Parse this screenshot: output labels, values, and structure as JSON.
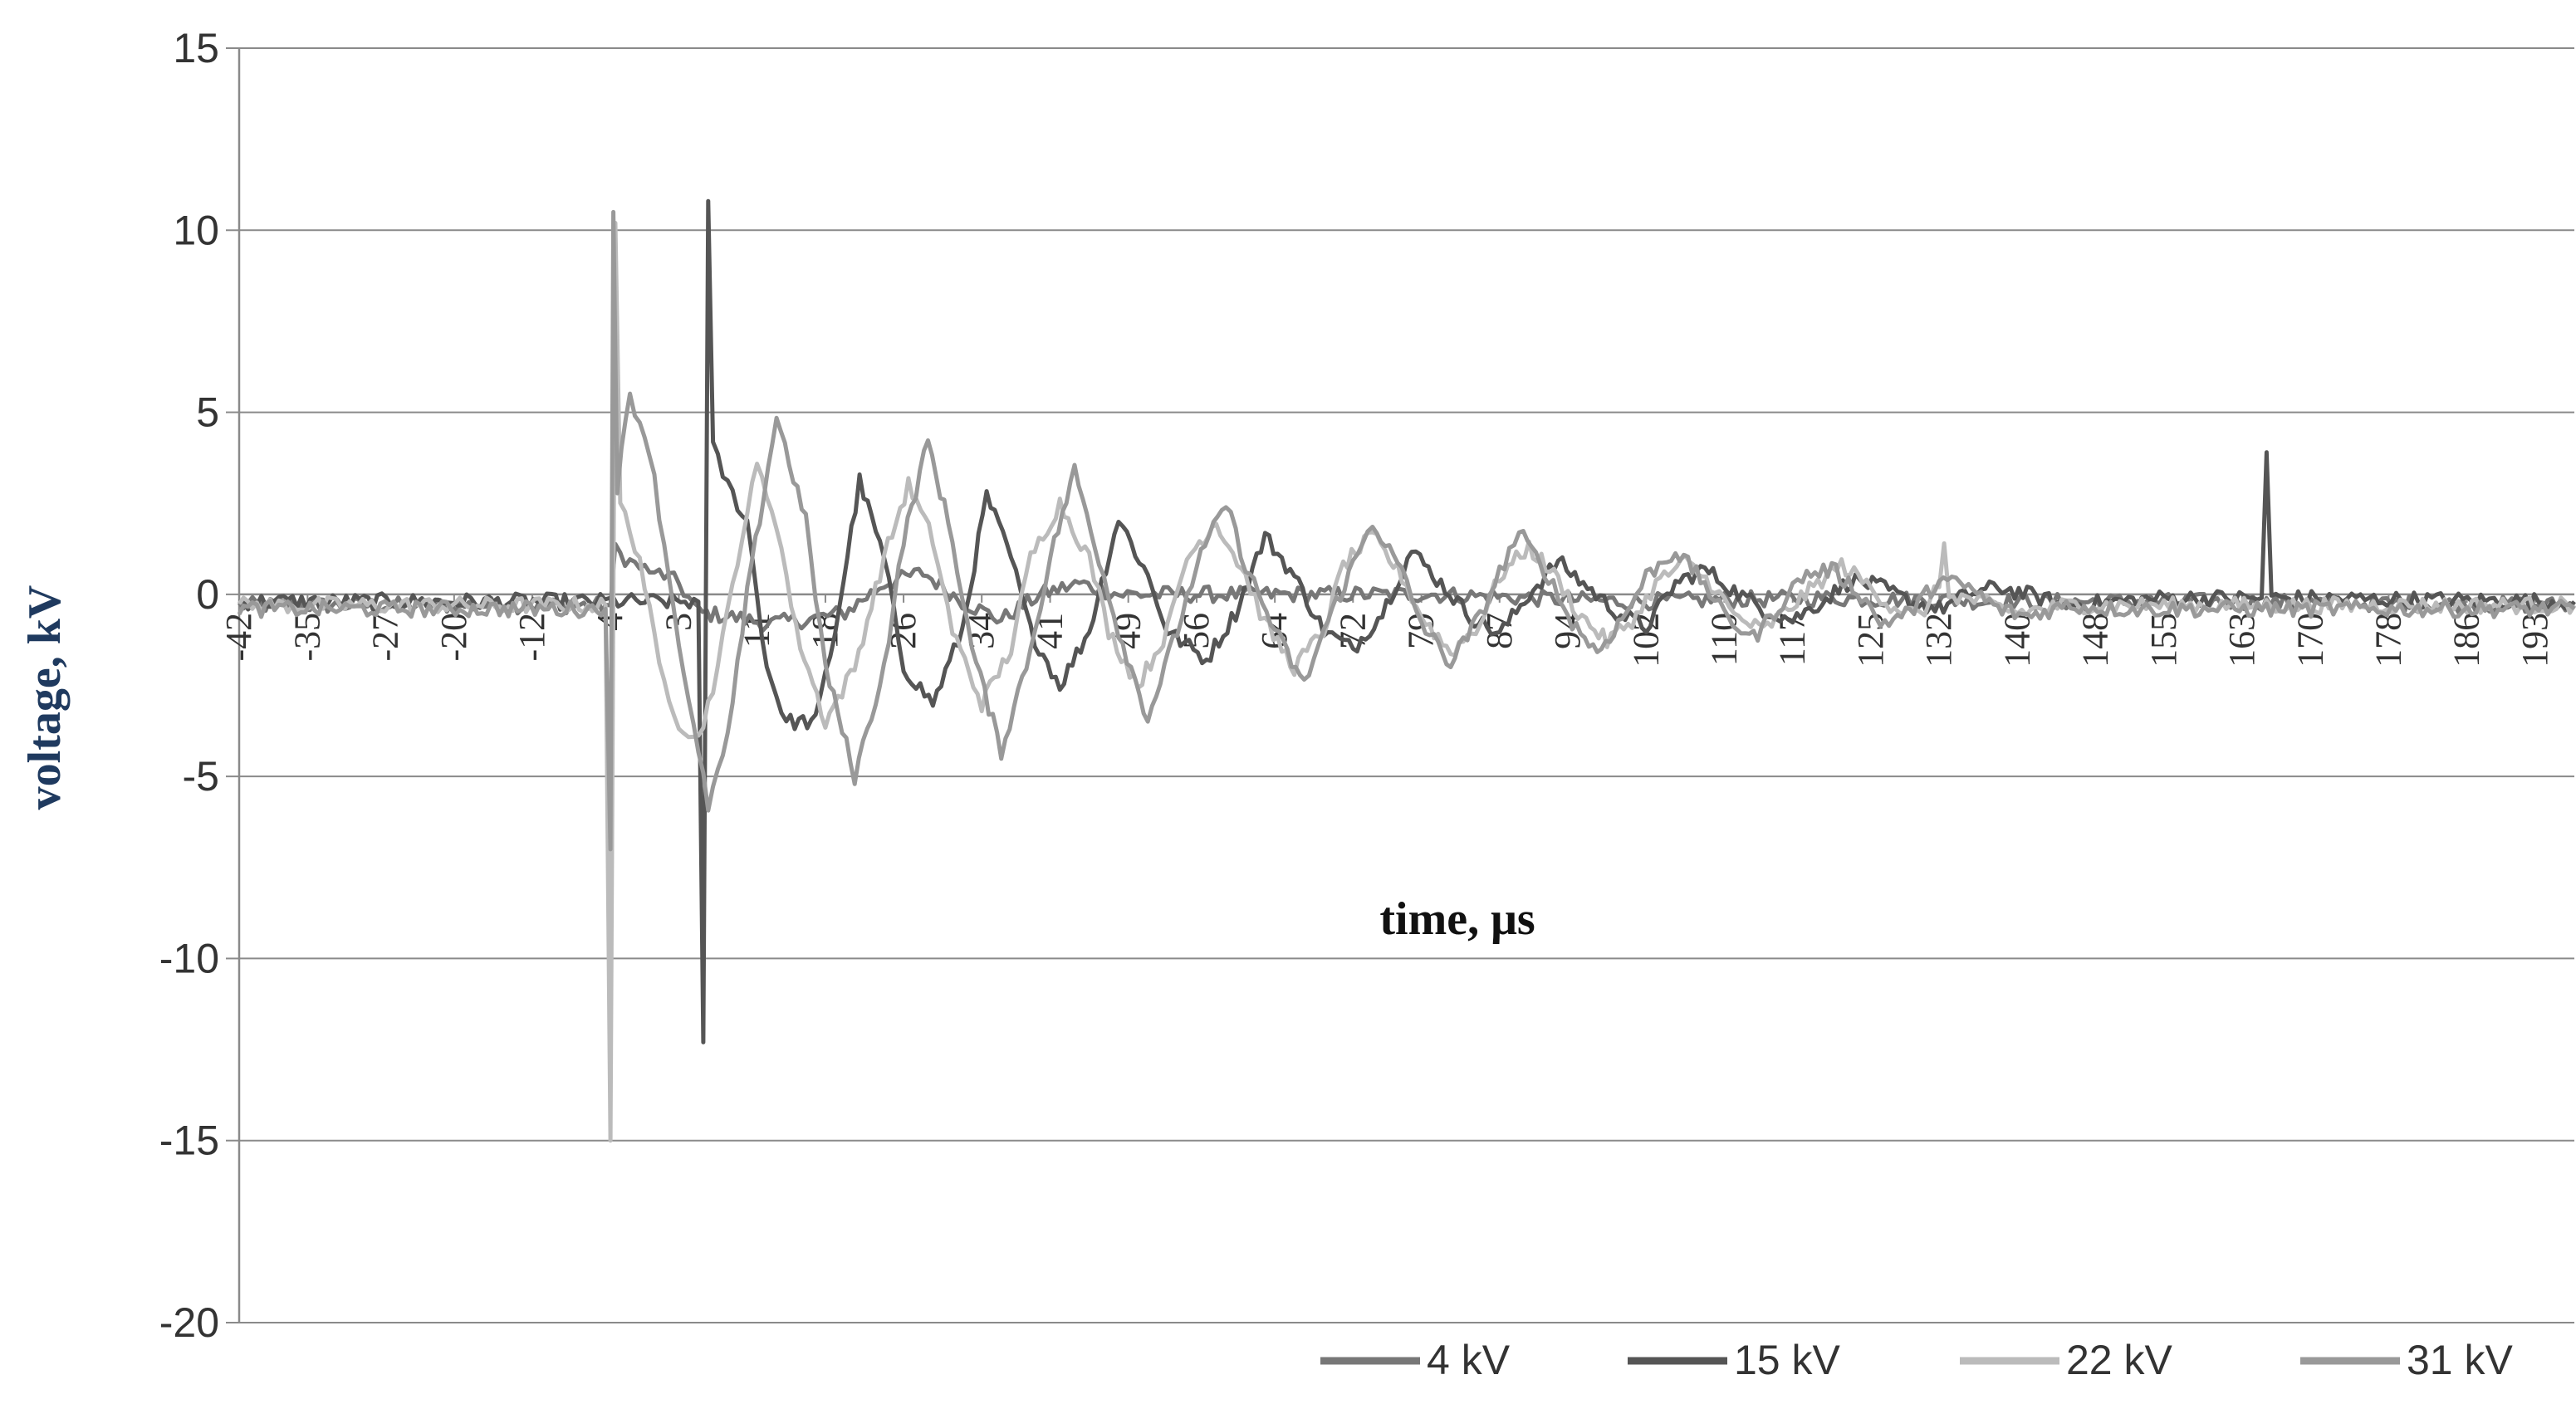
{
  "chart_data": {
    "type": "line",
    "title": "",
    "xlabel": "time, μs",
    "ylabel": "voltage, kV",
    "ylim": [
      -20,
      15
    ],
    "yticks": [
      "15",
      "10",
      "5",
      "0",
      "-5",
      "-10",
      "-15",
      "-20"
    ],
    "xlim": [
      -42,
      197
    ],
    "xticks": [
      "-42",
      "-35",
      "-27",
      "-20",
      "-12",
      "-4",
      "3",
      "11",
      "18",
      "26",
      "34",
      "41",
      "49",
      "56",
      "64",
      "72",
      "79",
      "87",
      "94",
      "102",
      "110",
      "117",
      "125",
      "132",
      "140",
      "148",
      "155",
      "163",
      "170",
      "178",
      "186",
      "193"
    ],
    "grid": "horizontal",
    "legend_position": "bottom-right",
    "series": [
      {
        "name": "4 kV",
        "color": "#777777",
        "points": [
          [
            -42,
            -0.3
          ],
          [
            -4,
            -0.3
          ],
          [
            -3.5,
            1.2
          ],
          [
            -2,
            0.9
          ],
          [
            0,
            0.6
          ],
          [
            1,
            0.6
          ],
          [
            3,
            0.3
          ],
          [
            5,
            -0.5
          ],
          [
            8,
            -0.6
          ],
          [
            12,
            -0.8
          ],
          [
            16,
            -0.7
          ],
          [
            20,
            -0.5
          ],
          [
            24,
            0.3
          ],
          [
            28,
            0.6
          ],
          [
            32,
            -0.2
          ],
          [
            36,
            -0.7
          ],
          [
            40,
            0.0
          ],
          [
            44,
            0.3
          ],
          [
            48,
            0.0
          ],
          [
            60,
            0.0
          ],
          [
            80,
            0.0
          ],
          [
            100,
            -0.2
          ],
          [
            120,
            -0.1
          ],
          [
            140,
            -0.2
          ],
          [
            160,
            -0.2
          ],
          [
            197,
            -0.3
          ]
        ]
      },
      {
        "name": "15 kV",
        "color": "#555555",
        "points": [
          [
            -42,
            -0.2
          ],
          [
            5,
            -0.2
          ],
          [
            5.5,
            -12.3
          ],
          [
            6,
            10.8
          ],
          [
            6.5,
            4.0
          ],
          [
            8,
            3.0
          ],
          [
            10,
            2.0
          ],
          [
            12,
            -2.0
          ],
          [
            14,
            -3.5
          ],
          [
            17,
            -3.5
          ],
          [
            19,
            -1.0
          ],
          [
            21.5,
            3.1
          ],
          [
            24,
            1.0
          ],
          [
            26,
            -2.0
          ],
          [
            29,
            -3.0
          ],
          [
            32,
            -1.0
          ],
          [
            34.5,
            2.7
          ],
          [
            37,
            1.0
          ],
          [
            39,
            -1.0
          ],
          [
            42,
            -2.5
          ],
          [
            45,
            -1.0
          ],
          [
            48,
            2.1
          ],
          [
            51,
            0.5
          ],
          [
            53,
            -1.0
          ],
          [
            57,
            -1.8
          ],
          [
            60,
            -0.5
          ],
          [
            63,
            1.6
          ],
          [
            66,
            0.5
          ],
          [
            69,
            -1.0
          ],
          [
            72,
            -1.5
          ],
          [
            75,
            -0.5
          ],
          [
            78,
            1.2
          ],
          [
            81,
            0.3
          ],
          [
            84,
            -0.6
          ],
          [
            87,
            -1.1
          ],
          [
            90,
            0.0
          ],
          [
            93,
            0.9
          ],
          [
            96,
            0.2
          ],
          [
            99,
            -0.5
          ],
          [
            102,
            -0.9
          ],
          [
            105,
            0.3
          ],
          [
            108,
            0.7
          ],
          [
            111,
            0.1
          ],
          [
            114,
            -0.4
          ],
          [
            117,
            -0.7
          ],
          [
            120,
            -0.2
          ],
          [
            123,
            0.4
          ],
          [
            126,
            0.2
          ],
          [
            129,
            -0.2
          ],
          [
            132,
            -0.4
          ],
          [
            135,
            0.0
          ],
          [
            138,
            0.2
          ],
          [
            141,
            0.0
          ],
          [
            145,
            -0.3
          ],
          [
            150,
            -0.2
          ],
          [
            155,
            -0.1
          ],
          [
            165,
            -0.1
          ],
          [
            165.5,
            3.9
          ],
          [
            166,
            -0.1
          ],
          [
            197,
            -0.2
          ]
        ]
      },
      {
        "name": "22 kV",
        "color": "#bbbbbb",
        "points": [
          [
            -42,
            -0.3
          ],
          [
            -4.5,
            -0.3
          ],
          [
            -4,
            -15.0
          ],
          [
            -3.5,
            10.2
          ],
          [
            -3,
            2.5
          ],
          [
            -1,
            1.0
          ],
          [
            1,
            -2.0
          ],
          [
            3,
            -3.5
          ],
          [
            5,
            -4.0
          ],
          [
            7,
            -2.0
          ],
          [
            9,
            1.0
          ],
          [
            11,
            3.5
          ],
          [
            13,
            2.0
          ],
          [
            15,
            -1.0
          ],
          [
            18,
            -3.5
          ],
          [
            21,
            -2.0
          ],
          [
            24,
            1.0
          ],
          [
            26.5,
            3.0
          ],
          [
            29,
            1.5
          ],
          [
            31,
            -1.0
          ],
          [
            34,
            -3.0
          ],
          [
            37,
            -1.5
          ],
          [
            39,
            1.0
          ],
          [
            42,
            2.5
          ],
          [
            45,
            1.0
          ],
          [
            47,
            -1.0
          ],
          [
            50,
            -2.5
          ],
          [
            53,
            -1.0
          ],
          [
            55,
            1.0
          ],
          [
            58,
            2.0
          ],
          [
            61,
            0.5
          ],
          [
            63,
            -0.8
          ],
          [
            66,
            -2.0
          ],
          [
            69,
            -1.0
          ],
          [
            71,
            0.8
          ],
          [
            74,
            1.6
          ],
          [
            77,
            0.5
          ],
          [
            79,
            -0.6
          ],
          [
            82,
            -1.6
          ],
          [
            85,
            -0.8
          ],
          [
            87,
            0.5
          ],
          [
            90,
            1.3
          ],
          [
            93,
            0.4
          ],
          [
            95,
            -0.5
          ],
          [
            98,
            -1.3
          ],
          [
            101,
            -0.6
          ],
          [
            103,
            0.3
          ],
          [
            106,
            0.9
          ],
          [
            109,
            0.2
          ],
          [
            111,
            -0.6
          ],
          [
            114,
            -1.0
          ],
          [
            117,
            -0.3
          ],
          [
            120,
            0.4
          ],
          [
            122,
            0.8
          ],
          [
            125,
            0.2
          ],
          [
            127,
            -0.3
          ],
          [
            130,
            -0.6
          ],
          [
            132,
            0.2
          ],
          [
            132.5,
            1.4
          ],
          [
            133,
            0.0
          ],
          [
            136,
            -0.2
          ],
          [
            140,
            -0.5
          ],
          [
            145,
            -0.3
          ],
          [
            150,
            -0.3
          ],
          [
            160,
            -0.3
          ],
          [
            197,
            -0.3
          ]
        ]
      },
      {
        "name": "31 kV",
        "color": "#999999",
        "points": [
          [
            -42,
            -0.4
          ],
          [
            -4.5,
            -0.4
          ],
          [
            -4,
            -7.0
          ],
          [
            -3.7,
            10.5
          ],
          [
            -3.3,
            3.0
          ],
          [
            -2,
            5.5
          ],
          [
            0,
            4.0
          ],
          [
            2,
            0.5
          ],
          [
            4,
            -3.0
          ],
          [
            6,
            -5.8
          ],
          [
            8,
            -4.0
          ],
          [
            10,
            0.0
          ],
          [
            13,
            4.9
          ],
          [
            16,
            2.0
          ],
          [
            18,
            -2.0
          ],
          [
            21,
            -5.0
          ],
          [
            24,
            -2.0
          ],
          [
            26,
            1.5
          ],
          [
            28.5,
            4.2
          ],
          [
            31,
            1.5
          ],
          [
            33,
            -1.5
          ],
          [
            36,
            -4.3
          ],
          [
            39,
            -1.5
          ],
          [
            41,
            1.0
          ],
          [
            43.5,
            3.4
          ],
          [
            46,
            1.0
          ],
          [
            48,
            -1.0
          ],
          [
            51,
            -3.4
          ],
          [
            54,
            -1.0
          ],
          [
            56,
            0.8
          ],
          [
            59,
            2.5
          ],
          [
            61,
            0.8
          ],
          [
            64,
            -1.0
          ],
          [
            67,
            -2.5
          ],
          [
            69,
            -1.0
          ],
          [
            72,
            0.8
          ],
          [
            74,
            2.0
          ],
          [
            77,
            0.6
          ],
          [
            79,
            -0.8
          ],
          [
            82,
            -1.9
          ],
          [
            85,
            -0.6
          ],
          [
            87,
            0.6
          ],
          [
            89,
            1.7
          ],
          [
            92,
            0.5
          ],
          [
            94,
            -0.6
          ],
          [
            97,
            -1.6
          ],
          [
            100,
            -0.5
          ],
          [
            102,
            0.5
          ],
          [
            105,
            1.2
          ],
          [
            108,
            0.3
          ],
          [
            110,
            -0.6
          ],
          [
            113,
            -1.2
          ],
          [
            116,
            -0.2
          ],
          [
            118,
            0.5
          ],
          [
            121,
            0.7
          ],
          [
            124,
            0.0
          ],
          [
            126,
            -0.8
          ],
          [
            129,
            -0.5
          ],
          [
            132,
            0.4
          ],
          [
            135,
            0.2
          ],
          [
            138,
            -0.4
          ],
          [
            141,
            -0.6
          ],
          [
            145,
            -0.3
          ],
          [
            150,
            -0.4
          ],
          [
            160,
            -0.4
          ],
          [
            197,
            -0.4
          ]
        ]
      }
    ]
  }
}
